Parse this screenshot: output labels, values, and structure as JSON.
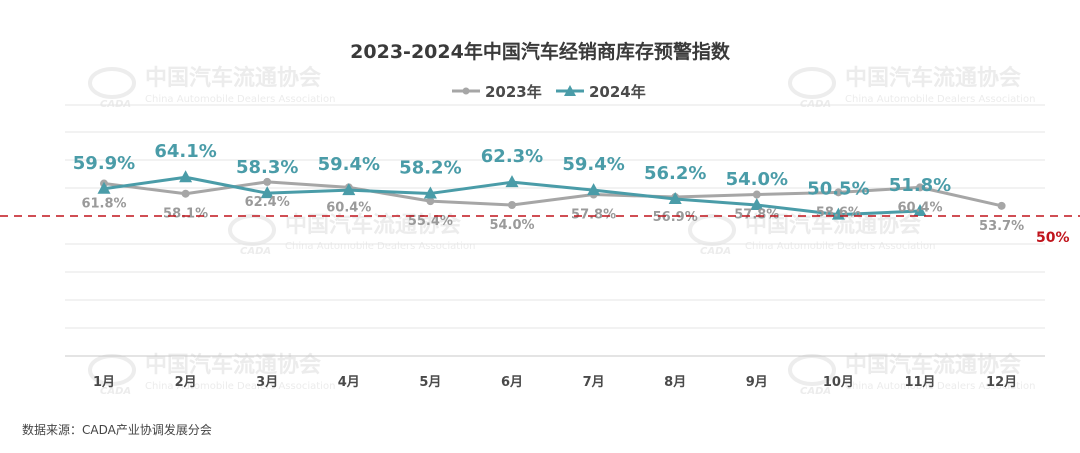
{
  "chart_data": {
    "type": "line",
    "title": "2023-2024年中国汽车经销商库存预警指数",
    "categories": [
      "1月",
      "2月",
      "3月",
      "4月",
      "5月",
      "6月",
      "7月",
      "8月",
      "9月",
      "10月",
      "11月",
      "12月"
    ],
    "series": [
      {
        "name": "2023年",
        "values": [
          61.8,
          58.1,
          62.4,
          60.4,
          55.4,
          54.0,
          57.8,
          56.9,
          57.8,
          58.6,
          60.4,
          53.7
        ],
        "color": "#a6a6a6",
        "marker": "circle"
      },
      {
        "name": "2024年",
        "values": [
          59.9,
          64.1,
          58.3,
          59.4,
          58.2,
          62.3,
          59.4,
          56.2,
          54.0,
          50.5,
          51.8,
          null
        ],
        "color": "#4a9ca8",
        "marker": "triangle"
      }
    ],
    "data_labels": {
      "2023年": [
        "61.8%",
        "58.1%",
        "62.4%",
        "60.4%",
        "55.4%",
        "54.0%",
        "57.8%",
        "56.9%",
        "57.8%",
        "58.6%",
        "60.4%",
        "53.7%"
      ],
      "2024年": [
        "59.9%",
        "64.1%",
        "58.3%",
        "59.4%",
        "58.2%",
        "62.3%",
        "59.4%",
        "56.2%",
        "54.0%",
        "50.5%",
        "51.8%"
      ]
    },
    "reference_line": {
      "value": 50,
      "label": "50%",
      "color": "#c0141c",
      "style": "dashed"
    },
    "legend_position": "top-center",
    "grid": "horizontal",
    "xlabel": "",
    "ylabel": ""
  },
  "watermark": {
    "name_cn": "中国汽车流通协会",
    "name_en": "China Automobile Dealers Association",
    "logo_text": "CADA"
  },
  "source": "数据来源：CADA产业协调发展分会"
}
